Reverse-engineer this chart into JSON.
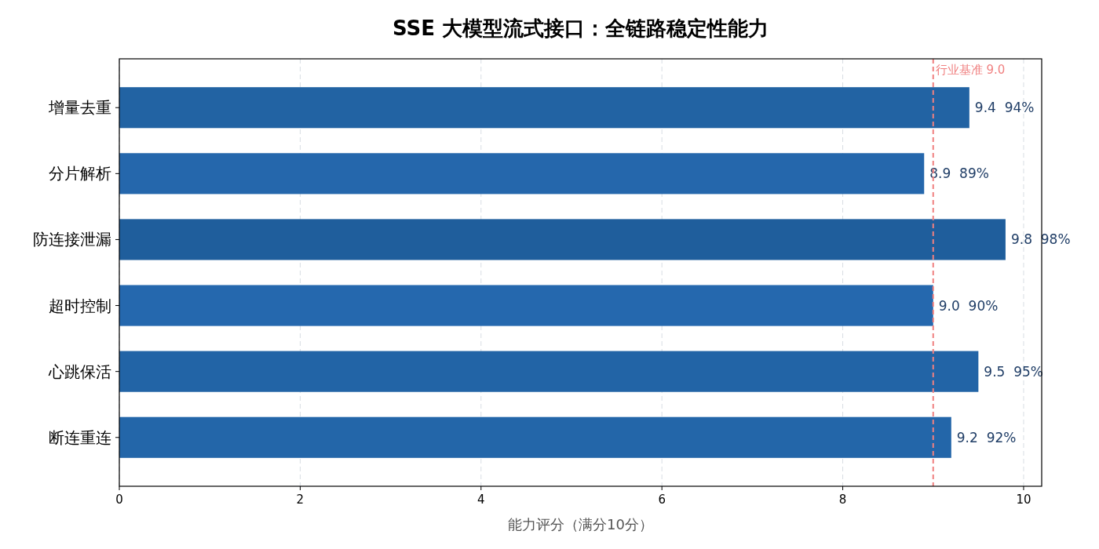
{
  "chart_data": {
    "type": "bar",
    "orientation": "horizontal",
    "title": "SSE 大模型流式接口：全链路稳定性能力",
    "xlabel": "能力评分（满分10分）",
    "categories": [
      "增量去重",
      "分片解析",
      "防连接泄漏",
      "超时控制",
      "心跳保活",
      "断连重连"
    ],
    "values": [
      9.4,
      8.9,
      9.8,
      9.0,
      9.5,
      9.2
    ],
    "colors": [
      "#2263a3",
      "#2567ac",
      "#1f5e9c",
      "#2568ae",
      "#2264a6",
      "#2366a9"
    ],
    "value_labels": [
      "9.4  94%",
      "8.9  89%",
      "9.8  98%",
      "9.0  90%",
      "9.5  95%",
      "9.2  92%"
    ],
    "xlim": [
      0,
      10.2
    ],
    "xticks": [
      0,
      2,
      4,
      6,
      8,
      10
    ],
    "grid": "x",
    "ref_lines": [
      {
        "axis": "x",
        "value": 9.0,
        "label": "行业基准 9.0",
        "color": "#f08080",
        "line_style": "dashed"
      }
    ]
  }
}
